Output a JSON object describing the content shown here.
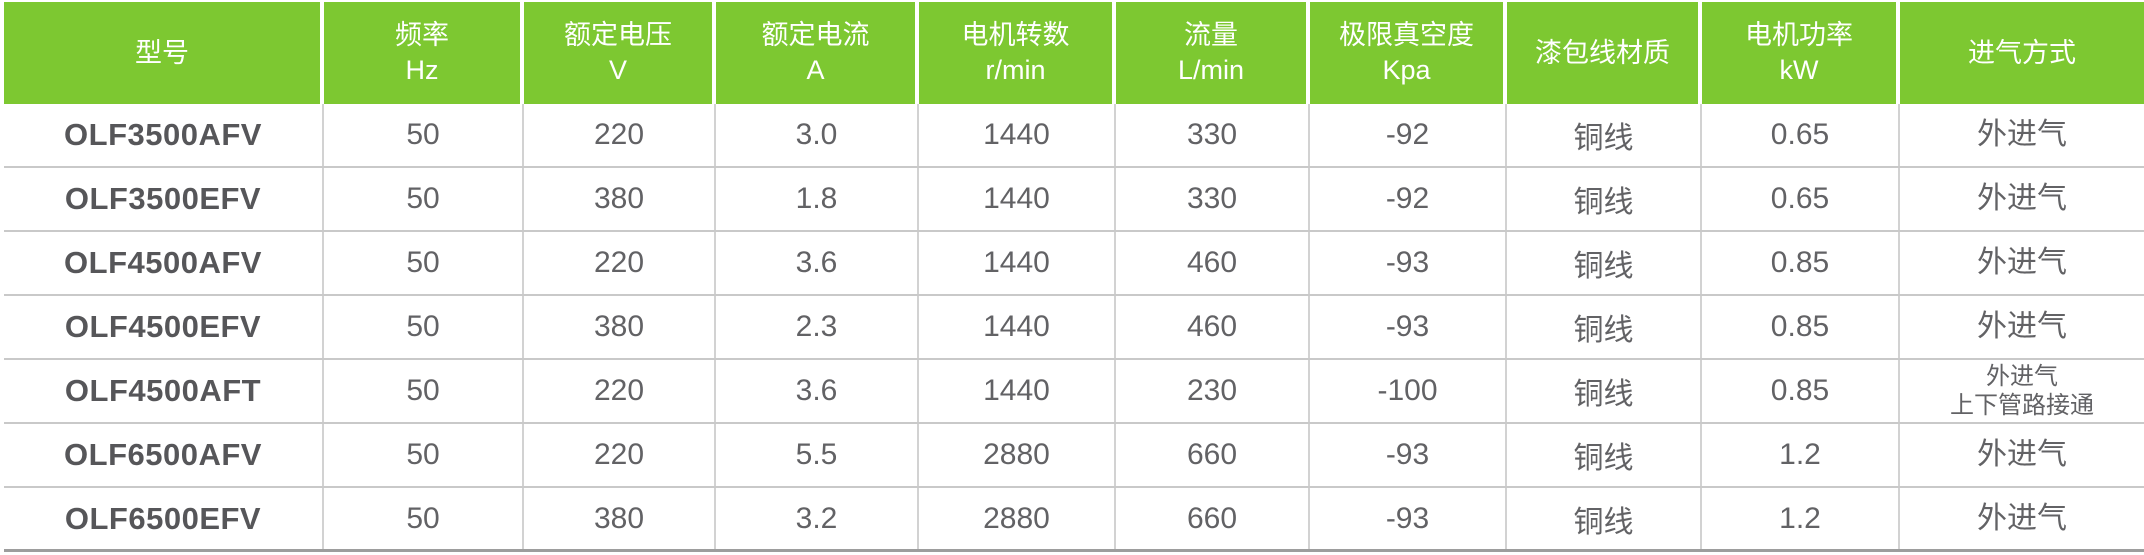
{
  "table": {
    "header": [
      {
        "title": "型号",
        "unit": ""
      },
      {
        "title": "频率",
        "unit": "Hz"
      },
      {
        "title": "额定电压",
        "unit": "V"
      },
      {
        "title": "额定电流",
        "unit": "A"
      },
      {
        "title": "电机转数",
        "unit": "r/min"
      },
      {
        "title": "流量",
        "unit": "L/min"
      },
      {
        "title": "极限真空度",
        "unit": "Kpa"
      },
      {
        "title": "漆包线材质",
        "unit": ""
      },
      {
        "title": "电机功率",
        "unit": "kW"
      },
      {
        "title": "进气方式",
        "unit": ""
      }
    ],
    "rows": [
      {
        "model": "OLF3500AFV",
        "frequency_hz": "50",
        "voltage_v": "220",
        "current_a": "3.0",
        "speed_rpm": "1440",
        "flow_lpm": "330",
        "vacuum_kpa": "-92",
        "wire": "铜线",
        "power_kw": "0.65",
        "intake": "外进气"
      },
      {
        "model": "OLF3500EFV",
        "frequency_hz": "50",
        "voltage_v": "380",
        "current_a": "1.8",
        "speed_rpm": "1440",
        "flow_lpm": "330",
        "vacuum_kpa": "-92",
        "wire": "铜线",
        "power_kw": "0.65",
        "intake": "外进气"
      },
      {
        "model": "OLF4500AFV",
        "frequency_hz": "50",
        "voltage_v": "220",
        "current_a": "3.6",
        "speed_rpm": "1440",
        "flow_lpm": "460",
        "vacuum_kpa": "-93",
        "wire": "铜线",
        "power_kw": "0.85",
        "intake": "外进气"
      },
      {
        "model": "OLF4500EFV",
        "frequency_hz": "50",
        "voltage_v": "380",
        "current_a": "2.3",
        "speed_rpm": "1440",
        "flow_lpm": "460",
        "vacuum_kpa": "-93",
        "wire": "铜线",
        "power_kw": "0.85",
        "intake": "外进气"
      },
      {
        "model": "OLF4500AFT",
        "frequency_hz": "50",
        "voltage_v": "220",
        "current_a": "3.6",
        "speed_rpm": "1440",
        "flow_lpm": "230",
        "vacuum_kpa": "-100",
        "wire": "铜线",
        "power_kw": "0.85",
        "intake": "外进气",
        "intake_line2": "上下管路接通"
      },
      {
        "model": "OLF6500AFV",
        "frequency_hz": "50",
        "voltage_v": "220",
        "current_a": "5.5",
        "speed_rpm": "2880",
        "flow_lpm": "660",
        "vacuum_kpa": "-93",
        "wire": "铜线",
        "power_kw": "1.2",
        "intake": "外进气"
      },
      {
        "model": "OLF6500EFV",
        "frequency_hz": "50",
        "voltage_v": "380",
        "current_a": "3.2",
        "speed_rpm": "2880",
        "flow_lpm": "660",
        "vacuum_kpa": "-93",
        "wire": "铜线",
        "power_kw": "1.2",
        "intake": "外进气"
      }
    ],
    "colors": {
      "header_bg": "#7dc831",
      "header_text": "#ffffff",
      "body_text": "#626265",
      "model_text": "#565659",
      "row_divider": "#c9c9c9",
      "column_divider": "#d2d2d2",
      "bottom_border": "#9d9d9d"
    }
  }
}
